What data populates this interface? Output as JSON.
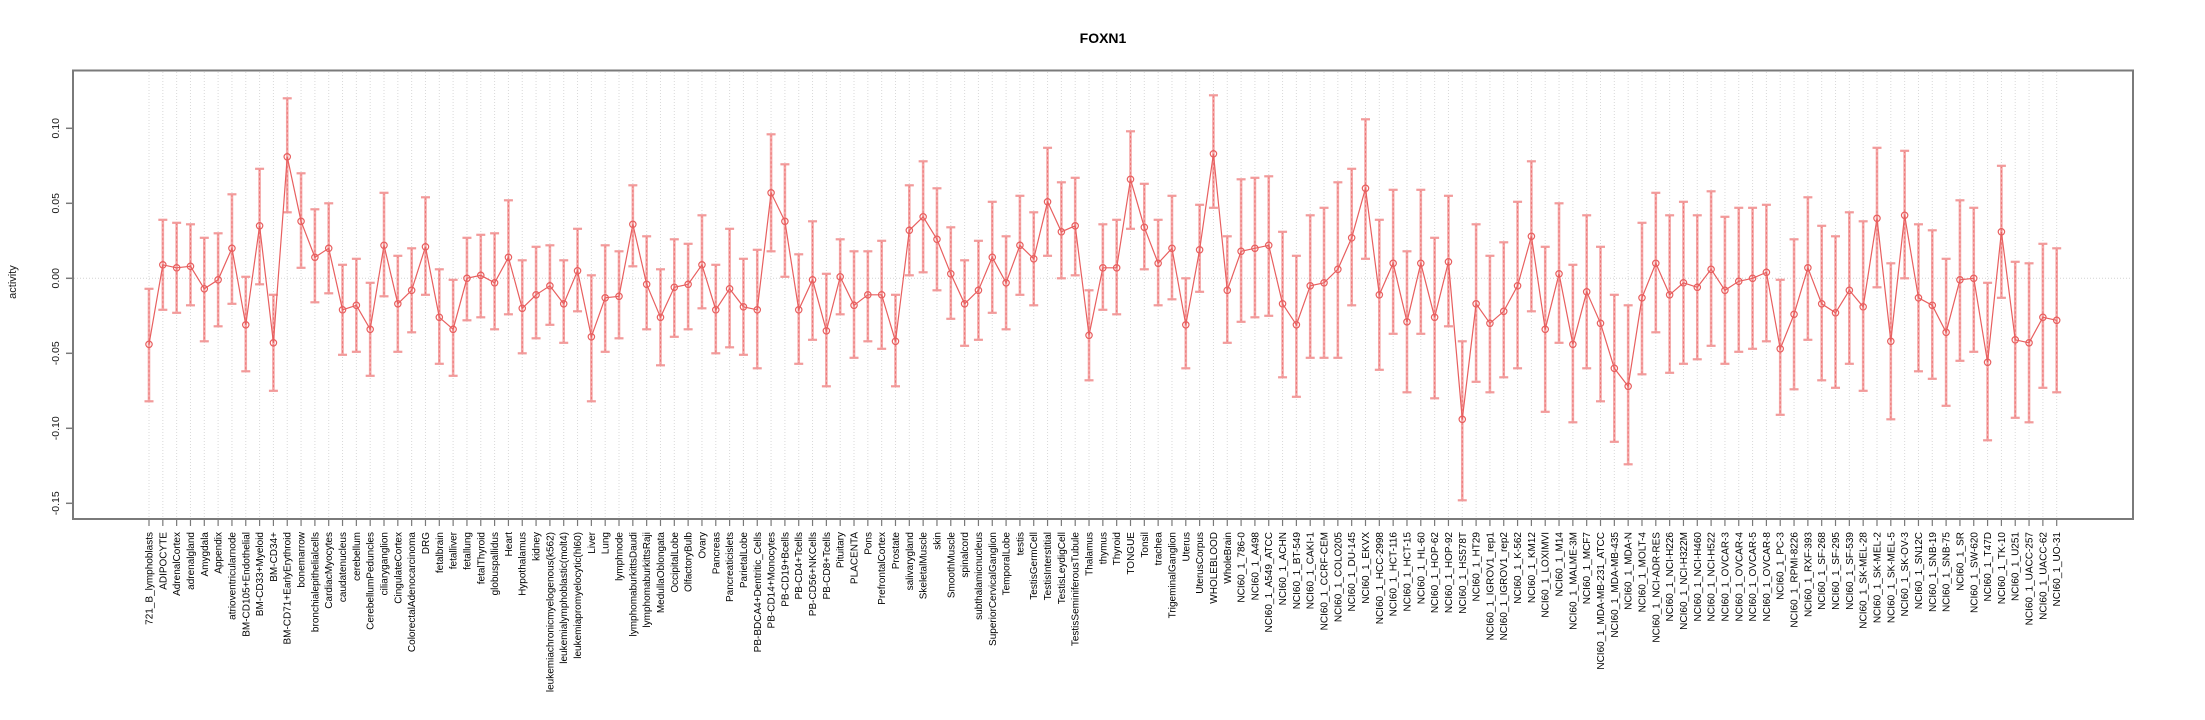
{
  "chart_data": {
    "type": "line",
    "title": "FOXN1",
    "ylabel": "activity",
    "xlabel": "",
    "error_bars": true,
    "grid": "vertical-dashed",
    "legend": "none",
    "ylim": [
      -0.158,
      0.139
    ],
    "yticks": [
      0.1,
      0.05,
      0.0,
      -0.05,
      -0.1,
      -0.15
    ],
    "ytick_labels": [
      "0.10",
      "0.05",
      "0.00",
      "-0.05",
      "-0.10",
      "-0.15"
    ],
    "xticklabel_rotation": 90,
    "colors": {
      "series": "#e85f5f",
      "errorbar": "#f5a9a9",
      "errorbar_cap": "#f29a9a",
      "frame": "#7a7a7a",
      "grid": "#d9d9d9",
      "zero_line": "#d4d4d4",
      "text": "#000000"
    },
    "categories": [
      "721_B_lymphoblasts",
      "ADIPOCYTE",
      "AdrenalCortex",
      "adrenalgland",
      "Amygdala",
      "Appendix",
      "atrioventricularnode",
      "BM-CD105+Endothelial",
      "BM-CD33+Myeloid",
      "BM-CD34+",
      "BM-CD71+EarlyErythroid",
      "bonemarrow",
      "bronchialepithelialcells",
      "CardiacMyocytes",
      "caudatenucleus",
      "cerebellum",
      "CerebellumPeduncles",
      "ciliaryganglion",
      "CingulateCortex",
      "ColorectalAdenocarcinoma",
      "DRG",
      "fetalbrain",
      "fetalliver",
      "fetallung",
      "fetalThyroid",
      "globuspallidus",
      "Heart",
      "Hypothalamus",
      "kidney",
      "leukemiachronicmyelogenous(k562)",
      "leukemialymphoblastic(molt4)",
      "leukemiapromyelocytic(hl60)",
      "Liver",
      "Lung",
      "lymphnode",
      "lymphomaburkittsDaudi",
      "lymphomaburkittsRaji",
      "MedullaOblongata",
      "OccipitalLobe",
      "OlfactoryBulb",
      "Ovary",
      "Pancreas",
      "Pancreaticislets",
      "ParietalLobe",
      "PB-BDCA4+Dentritic_Cells",
      "PB-CD14+Monocytes",
      "PB-CD19+Bcells",
      "PB-CD4+Tcells",
      "PB-CD56+NKCells",
      "PB-CD8+Tcells",
      "Pituitary",
      "PLACENTA",
      "Pons",
      "PrefrontalCortex",
      "Prostate",
      "salivarygland",
      "SkeletalMuscle",
      "skin",
      "SmoothMuscle",
      "spinalcord",
      "subthalamicnucleus",
      "SuperiorCervicalGanglion",
      "TemporalLobe",
      "testis",
      "TestisGermCell",
      "TestisInterstitial",
      "TestisLeydigCell",
      "TestisSeminiferousTubule",
      "Thalamus",
      "thymus",
      "Thyroid",
      "TONGUE",
      "Tonsil",
      "trachea",
      "TrigeminalGanglion",
      "Uterus",
      "UterusCorpus",
      "WHOLEBLOOD",
      "WholeBrain",
      "NCI60_1_786-0",
      "NCI60_1_A498",
      "NCI60_1_A549_ATCC",
      "NCI60_1_ACHN",
      "NCI60_1_BT-549",
      "NCI60_1_CAKI-1",
      "NCI60_1_CCRF-CEM",
      "NCI60_1_COLO205",
      "NCI60_1_DU-145",
      "NCI60_1_EKVX",
      "NCI60_1_HCC-2998",
      "NCI60_1_HCT-116",
      "NCI60_1_HCT-15",
      "NCI60_1_HL-60",
      "NCI60_1_HOP-62",
      "NCI60_1_HOP-92",
      "NCI60_1_HS578T",
      "NCI60_1_HT29",
      "NCI60_1_IGROV1_rep1",
      "NCI60_1_IGROV1_rep2",
      "NCI60_1_K-562",
      "NCI60_1_KM12",
      "NCI60_1_LOXIMVI",
      "NCI60_1_M14",
      "NCI60_1_MALME-3M",
      "NCI60_1_MCF7",
      "NCI60_1_MDA-MB-231_ATCC",
      "NCI60_1_MDA-MB-435",
      "NCI60_1_MDA-N",
      "NCI60_1_MOLT-4",
      "NCI60_1_NCI-ADR-RES",
      "NCI60_1_NCI-H226",
      "NCI60_1_NCI-H322M",
      "NCI60_1_NCI-H460",
      "NCI60_1_NCI-H522",
      "NCI60_1_OVCAR-3",
      "NCI60_1_OVCAR-4",
      "NCI60_1_OVCAR-5",
      "NCI60_1_OVCAR-8",
      "NCI60_1_PC-3",
      "NCI60_1_RPMI-8226",
      "NCI60_1_RXF-393",
      "NCI60_1_SF-268",
      "NCI60_1_SF-295",
      "NCI60_1_SF-539",
      "NCI60_1_SK-MEL-28",
      "NCI60_1_SK-MEL-2",
      "NCI60_1_SK-MEL-5",
      "NCI60_1_SK-OV-3",
      "NCI60_1_SN12C",
      "NCI60_1_SNB-19",
      "NCI60_1_SNB-75",
      "NCI60_1_SR",
      "NCI60_1_SW-620",
      "NCI60_1_T47D",
      "NCI60_1_TK-10",
      "NCI60_1_U251",
      "NCI60_1_UACC-257",
      "NCI60_1_UACC-62",
      "NCI60_1_UO-31"
    ],
    "values": [
      -0.044,
      0.009,
      0.007,
      0.008,
      -0.007,
      -0.001,
      0.02,
      -0.031,
      0.035,
      -0.043,
      0.081,
      0.038,
      0.014,
      0.02,
      -0.021,
      -0.018,
      -0.034,
      0.022,
      -0.017,
      -0.008,
      0.021,
      -0.026,
      -0.034,
      0.0,
      0.002,
      -0.003,
      0.014,
      -0.02,
      -0.011,
      -0.005,
      -0.017,
      0.005,
      -0.039,
      -0.013,
      -0.012,
      0.036,
      -0.004,
      -0.026,
      -0.006,
      -0.004,
      0.009,
      -0.021,
      -0.007,
      -0.019,
      -0.021,
      0.057,
      0.038,
      -0.021,
      -0.001,
      -0.035,
      0.001,
      -0.018,
      -0.011,
      -0.011,
      -0.042,
      0.032,
      0.041,
      0.026,
      0.003,
      -0.017,
      -0.008,
      0.014,
      -0.003,
      0.022,
      0.013,
      0.051,
      0.031,
      0.035,
      -0.038,
      0.007,
      0.007,
      0.066,
      0.034,
      0.01,
      0.02,
      -0.031,
      0.019,
      0.083,
      -0.008,
      0.018,
      0.02,
      0.022,
      -0.017,
      -0.031,
      -0.005,
      -0.003,
      0.006,
      0.027,
      0.06,
      -0.011,
      0.01,
      -0.029,
      0.01,
      -0.026,
      0.011,
      -0.094,
      -0.017,
      -0.03,
      -0.022,
      -0.005,
      0.028,
      -0.034,
      0.003,
      -0.044,
      -0.009,
      -0.03,
      -0.06,
      -0.072,
      -0.013,
      0.01,
      -0.011,
      -0.003,
      -0.006,
      0.006,
      -0.008,
      -0.002,
      0.0,
      0.004,
      -0.047,
      -0.024,
      0.007,
      -0.017,
      -0.023,
      -0.008,
      -0.019,
      0.04,
      -0.042,
      0.042,
      -0.013,
      -0.018,
      -0.036,
      -0.001,
      0.0,
      -0.056,
      0.031,
      -0.041,
      -0.043,
      -0.026,
      -0.028
    ],
    "lower": [
      -0.082,
      -0.021,
      -0.023,
      -0.018,
      -0.042,
      -0.032,
      -0.017,
      -0.062,
      -0.004,
      -0.075,
      0.044,
      0.007,
      -0.016,
      -0.01,
      -0.051,
      -0.049,
      -0.065,
      -0.012,
      -0.049,
      -0.036,
      -0.011,
      -0.057,
      -0.065,
      -0.028,
      -0.026,
      -0.034,
      -0.024,
      -0.05,
      -0.04,
      -0.031,
      -0.043,
      -0.022,
      -0.082,
      -0.049,
      -0.04,
      0.008,
      -0.034,
      -0.058,
      -0.039,
      -0.034,
      -0.02,
      -0.05,
      -0.046,
      -0.051,
      -0.06,
      0.018,
      0.001,
      -0.057,
      -0.041,
      -0.072,
      -0.024,
      -0.053,
      -0.042,
      -0.047,
      -0.072,
      0.002,
      0.004,
      -0.008,
      -0.027,
      -0.045,
      -0.041,
      -0.023,
      -0.034,
      -0.011,
      -0.018,
      0.015,
      0.0,
      0.002,
      -0.068,
      -0.021,
      -0.024,
      0.033,
      0.006,
      -0.018,
      -0.014,
      -0.06,
      -0.009,
      0.047,
      -0.043,
      -0.029,
      -0.026,
      -0.025,
      -0.066,
      -0.079,
      -0.053,
      -0.053,
      -0.053,
      -0.018,
      0.013,
      -0.061,
      -0.037,
      -0.076,
      -0.037,
      -0.08,
      -0.032,
      -0.148,
      -0.069,
      -0.076,
      -0.066,
      -0.06,
      -0.022,
      -0.089,
      -0.043,
      -0.096,
      -0.06,
      -0.082,
      -0.109,
      -0.124,
      -0.064,
      -0.036,
      -0.063,
      -0.057,
      -0.054,
      -0.045,
      -0.057,
      -0.049,
      -0.047,
      -0.042,
      -0.091,
      -0.074,
      -0.041,
      -0.068,
      -0.073,
      -0.057,
      -0.075,
      -0.006,
      -0.094,
      0.0,
      -0.062,
      -0.067,
      -0.085,
      -0.055,
      -0.049,
      -0.108,
      -0.013,
      -0.093,
      -0.096,
      -0.073,
      -0.076
    ],
    "upper": [
      -0.007,
      0.039,
      0.037,
      0.036,
      0.027,
      0.03,
      0.056,
      0.001,
      0.073,
      -0.011,
      0.12,
      0.07,
      0.046,
      0.05,
      0.009,
      0.013,
      -0.003,
      0.057,
      0.015,
      0.02,
      0.054,
      0.006,
      -0.001,
      0.027,
      0.029,
      0.03,
      0.052,
      0.012,
      0.021,
      0.022,
      0.012,
      0.033,
      0.002,
      0.022,
      0.018,
      0.062,
      0.028,
      0.006,
      0.026,
      0.023,
      0.042,
      0.009,
      0.033,
      0.013,
      0.019,
      0.096,
      0.076,
      0.016,
      0.038,
      0.003,
      0.026,
      0.018,
      0.018,
      0.025,
      -0.011,
      0.062,
      0.078,
      0.06,
      0.034,
      0.012,
      0.025,
      0.051,
      0.028,
      0.055,
      0.044,
      0.087,
      0.064,
      0.067,
      -0.008,
      0.036,
      0.039,
      0.098,
      0.063,
      0.039,
      0.055,
      0.0,
      0.049,
      0.122,
      0.028,
      0.066,
      0.067,
      0.068,
      0.031,
      0.015,
      0.042,
      0.047,
      0.064,
      0.073,
      0.106,
      0.039,
      0.059,
      0.018,
      0.059,
      0.027,
      0.055,
      -0.042,
      0.036,
      0.015,
      0.024,
      0.051,
      0.078,
      0.021,
      0.05,
      0.009,
      0.042,
      0.021,
      -0.011,
      -0.018,
      0.037,
      0.057,
      0.042,
      0.051,
      0.042,
      0.058,
      0.041,
      0.047,
      0.047,
      0.049,
      -0.001,
      0.026,
      0.054,
      0.035,
      0.028,
      0.044,
      0.038,
      0.087,
      0.01,
      0.085,
      0.036,
      0.032,
      0.013,
      0.052,
      0.047,
      -0.003,
      0.075,
      0.011,
      0.01,
      0.023,
      0.02
    ]
  }
}
